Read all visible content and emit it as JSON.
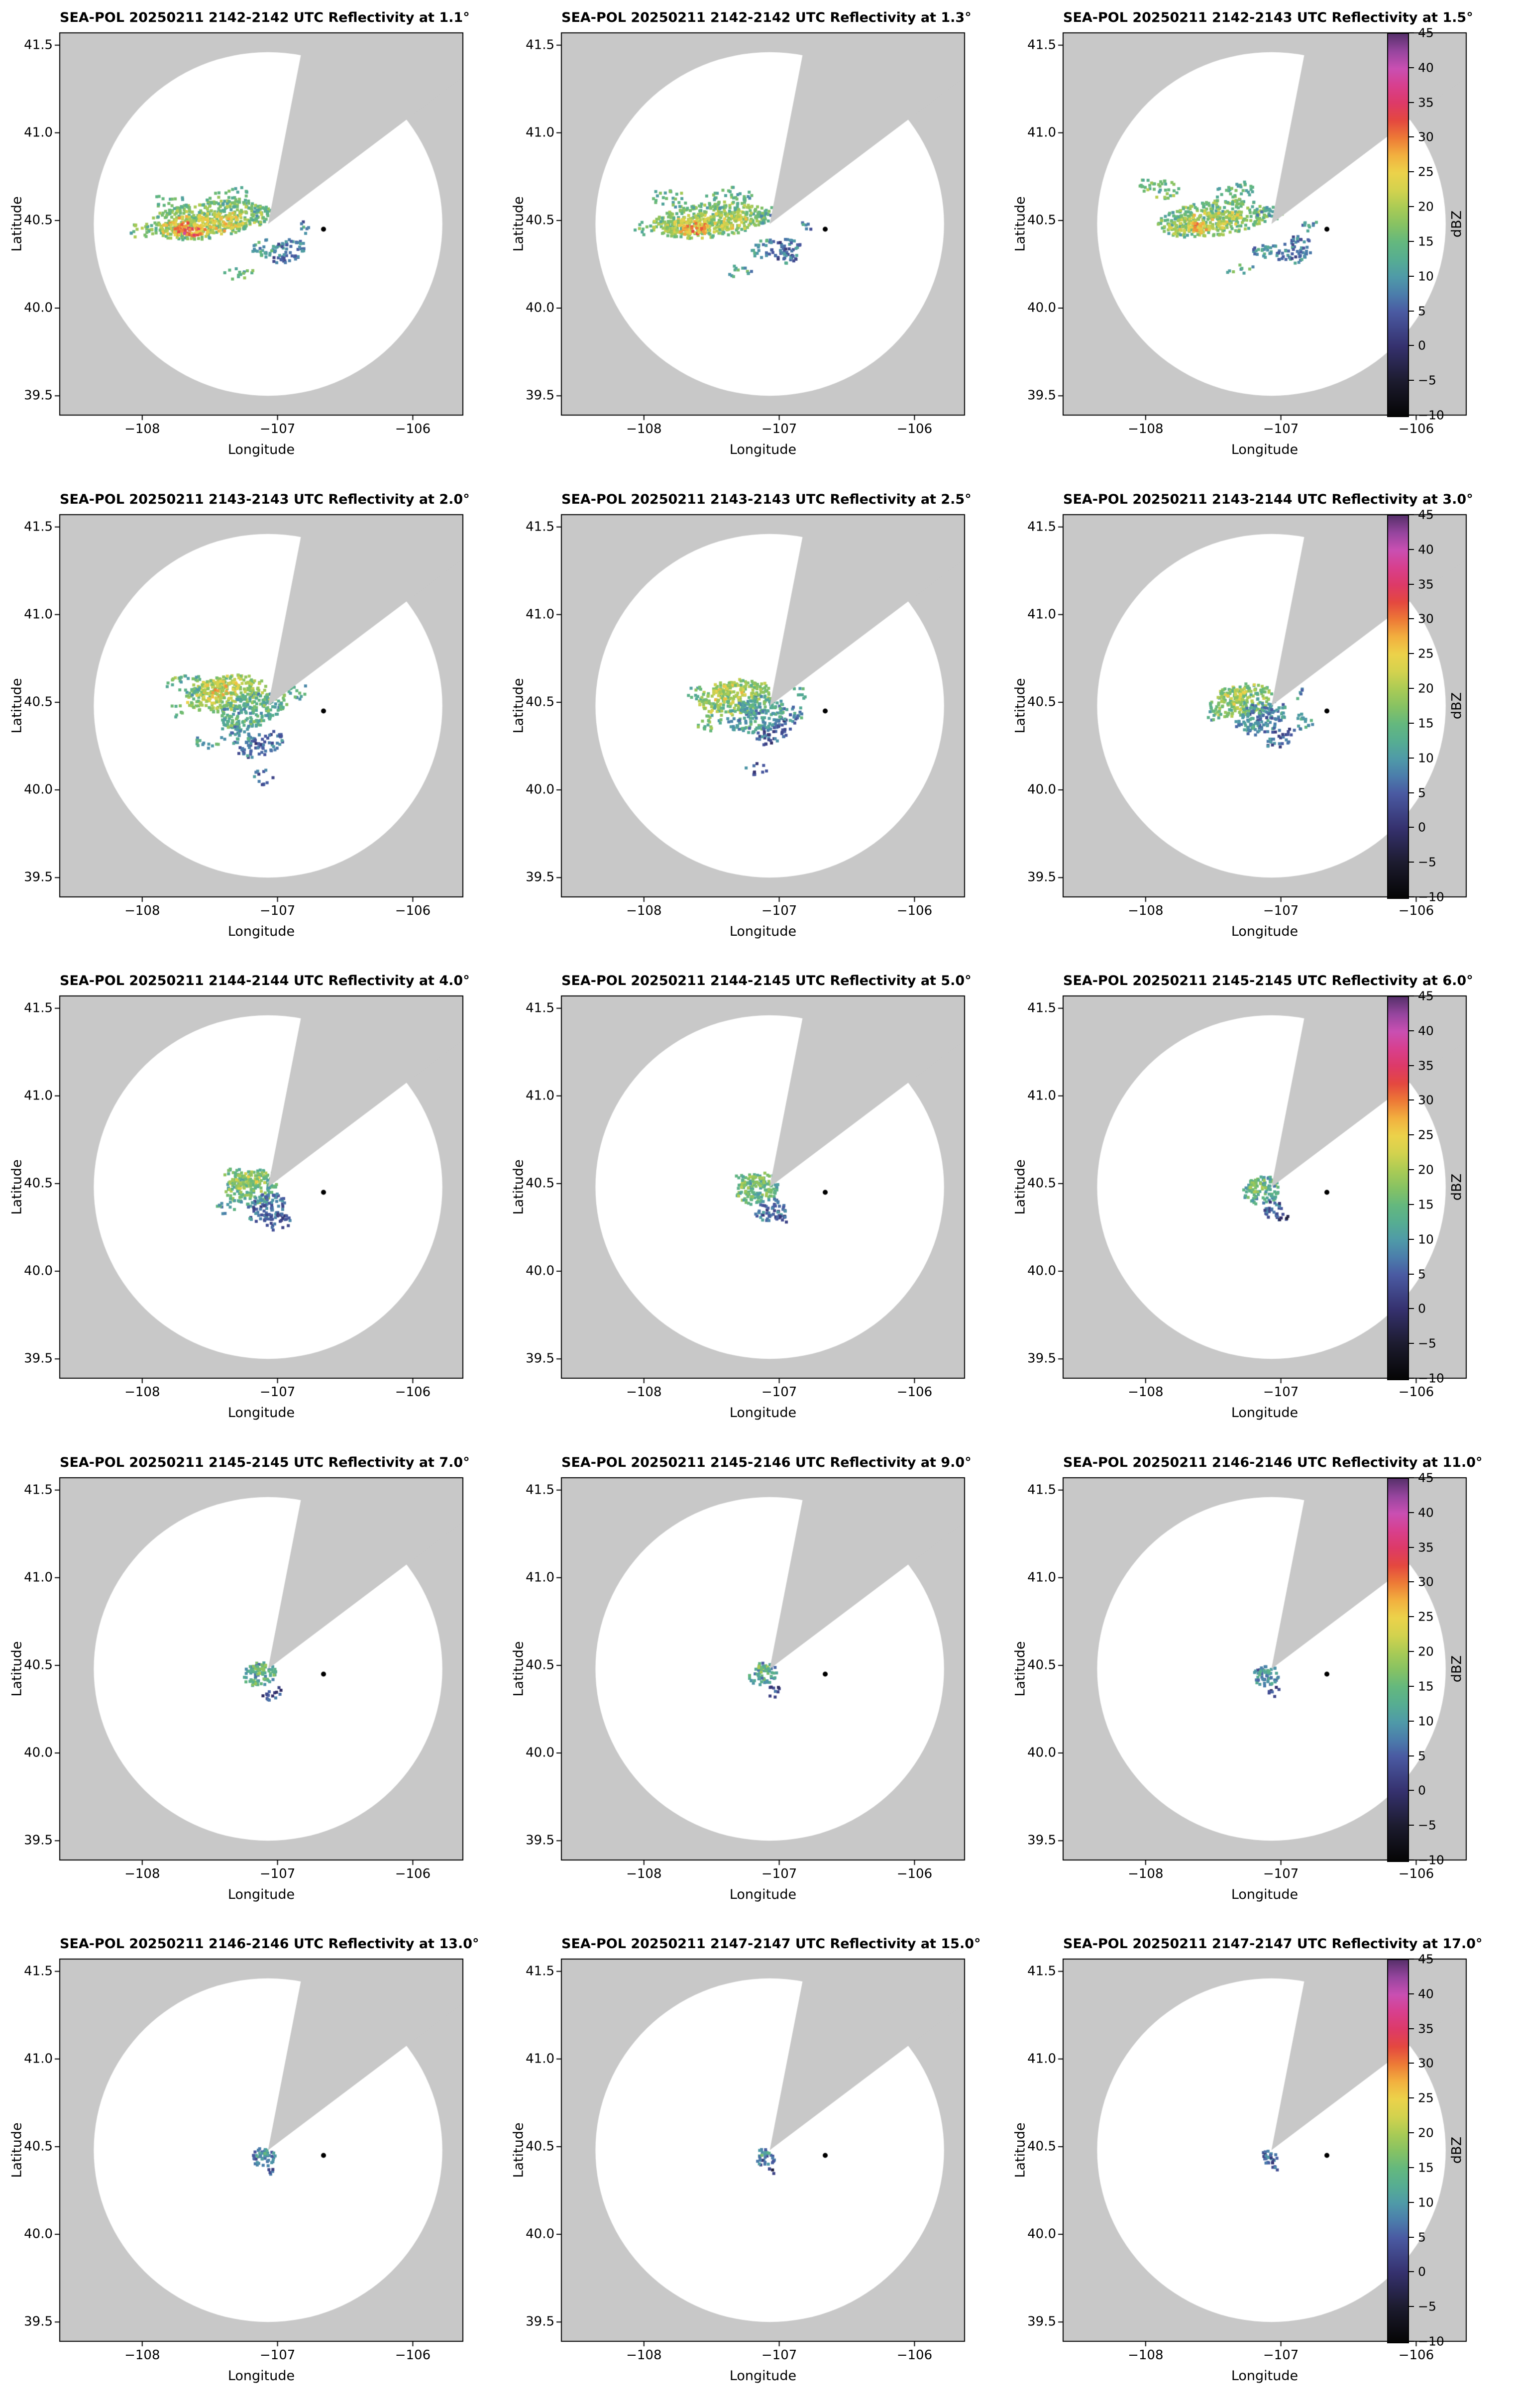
{
  "chart_data": {
    "type": "heatmap",
    "subtype": "radar_ppi_multipanel",
    "radar_name": "SEA-POL",
    "date": "20250211",
    "variable": "Reflectivity",
    "units": "dBZ",
    "grid": {
      "rows": 5,
      "cols": 3
    },
    "axes": {
      "xlabel": "Longitude",
      "ylabel": "Latitude",
      "xlim": [
        -108.61,
        -105.63
      ],
      "ylim": [
        39.39,
        41.57
      ],
      "x_ticks": [
        -108,
        -107,
        -106
      ],
      "x_tick_labels": [
        "−108",
        "−107",
        "−106"
      ],
      "y_ticks": [
        39.5,
        40.0,
        40.5,
        41.0,
        41.5
      ],
      "y_tick_labels": [
        "39.5",
        "40.0",
        "40.5",
        "41.0",
        "41.5"
      ]
    },
    "map": {
      "radar_center": {
        "lon": -107.07,
        "lat": 40.48
      },
      "scan_circle_radius_deg_lat": 0.98,
      "blocked_sector_azimuth_deg": [
        11,
        53
      ],
      "site_marker": {
        "lon": -106.66,
        "lat": 40.45,
        "color": "#000000"
      },
      "inside_circle_color": "#ffffff",
      "outside_color": "#c8c8c8"
    },
    "colorbar": {
      "label": "dBZ",
      "min": -10,
      "max": 45,
      "ticks": [
        45,
        40,
        35,
        30,
        25,
        20,
        15,
        10,
        5,
        0,
        -5,
        -10
      ],
      "tick_labels": [
        "45",
        "40",
        "35",
        "30",
        "25",
        "20",
        "15",
        "10",
        "5",
        "0",
        "−5",
        "−10"
      ],
      "stops": [
        [
          -10,
          "#050505"
        ],
        [
          -5,
          "#1c1b2e"
        ],
        [
          0,
          "#35316e"
        ],
        [
          5,
          "#4a5aa2"
        ],
        [
          7.5,
          "#4b7dab"
        ],
        [
          10,
          "#4f9aa8"
        ],
        [
          12.5,
          "#56ad92"
        ],
        [
          15,
          "#64b87e"
        ],
        [
          17.5,
          "#86c263"
        ],
        [
          20,
          "#aacb55"
        ],
        [
          22.5,
          "#d3d24e"
        ],
        [
          25,
          "#ecd24a"
        ],
        [
          27.5,
          "#f2b03f"
        ],
        [
          30,
          "#ed7a36"
        ],
        [
          32.5,
          "#e4483f"
        ],
        [
          35,
          "#dd3a67"
        ],
        [
          37.5,
          "#d83f8d"
        ],
        [
          40,
          "#c94fb2"
        ],
        [
          42.5,
          "#96459e"
        ],
        [
          45,
          "#57306b"
        ]
      ]
    },
    "echo_blob_fields": [
      "lon",
      "lat",
      "rx_deg",
      "ry_deg",
      "rot_deg",
      "dbz",
      "density"
    ],
    "panels": [
      {
        "title": "SEA-POL 20250211 2142-2142 UTC Reflectivity at 1.1°",
        "elevation_deg": 1.1,
        "time_utc": "2142-2142",
        "echo_blobs": [
          [
            -107.52,
            40.5,
            0.46,
            0.105,
            -6,
            17,
            0.8
          ],
          [
            -107.55,
            40.48,
            0.33,
            0.06,
            -6,
            23,
            0.9
          ],
          [
            -107.63,
            40.45,
            0.14,
            0.04,
            -4,
            29,
            0.95
          ],
          [
            -107.67,
            40.44,
            0.05,
            0.018,
            0,
            33,
            0.9
          ],
          [
            -107.36,
            40.62,
            0.2,
            0.06,
            -14,
            15,
            0.35
          ],
          [
            -107.78,
            40.6,
            0.14,
            0.05,
            8,
            15,
            0.3
          ],
          [
            -107.1,
            40.53,
            0.1,
            0.045,
            -12,
            14,
            0.55
          ],
          [
            -106.92,
            40.32,
            0.13,
            0.07,
            -25,
            7,
            0.65
          ],
          [
            -107.1,
            40.34,
            0.1,
            0.05,
            -15,
            11,
            0.5
          ],
          [
            -107.28,
            40.2,
            0.13,
            0.035,
            -8,
            13,
            0.3
          ],
          [
            -106.8,
            40.46,
            0.05,
            0.035,
            0,
            9,
            0.4
          ],
          [
            -108.02,
            40.44,
            0.08,
            0.04,
            0,
            16,
            0.4
          ]
        ]
      },
      {
        "title": "SEA-POL 20250211 2142-2142 UTC Reflectivity at 1.3°",
        "elevation_deg": 1.3,
        "time_utc": "2142-2142",
        "echo_blobs": [
          [
            -107.52,
            40.5,
            0.44,
            0.1,
            -6,
            17,
            0.8
          ],
          [
            -107.55,
            40.48,
            0.31,
            0.055,
            -6,
            22,
            0.9
          ],
          [
            -107.62,
            40.45,
            0.12,
            0.035,
            -4,
            28,
            0.95
          ],
          [
            -107.38,
            40.63,
            0.2,
            0.06,
            -14,
            15,
            0.35
          ],
          [
            -107.82,
            40.63,
            0.15,
            0.055,
            10,
            14,
            0.3
          ],
          [
            -107.1,
            40.53,
            0.1,
            0.045,
            -12,
            13,
            0.5
          ],
          [
            -106.93,
            40.33,
            0.13,
            0.07,
            -25,
            7,
            0.6
          ],
          [
            -107.12,
            40.34,
            0.1,
            0.05,
            -15,
            10,
            0.5
          ],
          [
            -107.3,
            40.21,
            0.12,
            0.035,
            -8,
            13,
            0.3
          ],
          [
            -106.81,
            40.46,
            0.05,
            0.035,
            0,
            8,
            0.35
          ],
          [
            -108.0,
            40.45,
            0.07,
            0.04,
            0,
            15,
            0.35
          ]
        ]
      },
      {
        "title": "SEA-POL 20250211 2142-2143 UTC Reflectivity at 1.5°",
        "elevation_deg": 1.5,
        "time_utc": "2142-2143",
        "echo_blobs": [
          [
            -107.5,
            40.51,
            0.42,
            0.1,
            -7,
            16,
            0.8
          ],
          [
            -107.55,
            40.49,
            0.28,
            0.055,
            -7,
            21,
            0.85
          ],
          [
            -107.6,
            40.46,
            0.09,
            0.03,
            -4,
            27,
            0.9
          ],
          [
            -107.9,
            40.68,
            0.16,
            0.06,
            12,
            15,
            0.4
          ],
          [
            -107.35,
            40.66,
            0.18,
            0.055,
            -14,
            14,
            0.35
          ],
          [
            -107.08,
            40.54,
            0.1,
            0.045,
            -12,
            13,
            0.5
          ],
          [
            -106.9,
            40.33,
            0.14,
            0.075,
            -25,
            7,
            0.6
          ],
          [
            -107.12,
            40.33,
            0.1,
            0.05,
            -15,
            10,
            0.5
          ],
          [
            -106.78,
            40.47,
            0.06,
            0.04,
            0,
            9,
            0.4
          ],
          [
            -107.3,
            40.22,
            0.1,
            0.03,
            -8,
            12,
            0.3
          ]
        ]
      },
      {
        "title": "SEA-POL 20250211 2143-2143 UTC Reflectivity at 2.0°",
        "elevation_deg": 2.0,
        "time_utc": "2143-2143",
        "echo_blobs": [
          [
            -107.38,
            40.55,
            0.3,
            0.1,
            -10,
            19,
            0.8
          ],
          [
            -107.43,
            40.57,
            0.15,
            0.05,
            -10,
            23,
            0.85
          ],
          [
            -107.2,
            40.45,
            0.24,
            0.1,
            -15,
            13,
            0.8
          ],
          [
            -107.02,
            40.5,
            0.1,
            0.06,
            0,
            15,
            0.6
          ],
          [
            -107.12,
            40.26,
            0.18,
            0.065,
            -20,
            6,
            0.6
          ],
          [
            -107.32,
            40.31,
            0.12,
            0.05,
            10,
            11,
            0.5
          ],
          [
            -107.68,
            40.6,
            0.14,
            0.065,
            0,
            15,
            0.4
          ],
          [
            -106.84,
            40.56,
            0.08,
            0.05,
            0,
            13,
            0.35
          ],
          [
            -107.1,
            40.07,
            0.09,
            0.045,
            0,
            5,
            0.3
          ],
          [
            -107.52,
            40.26,
            0.11,
            0.04,
            20,
            13,
            0.3
          ],
          [
            -107.75,
            40.45,
            0.07,
            0.035,
            0,
            14,
            0.3
          ]
        ]
      },
      {
        "title": "SEA-POL 20250211 2143-2143 UTC Reflectivity at 2.5°",
        "elevation_deg": 2.5,
        "time_utc": "2143-2143",
        "echo_blobs": [
          [
            -107.33,
            40.53,
            0.27,
            0.1,
            -10,
            18,
            0.8
          ],
          [
            -107.38,
            40.55,
            0.12,
            0.05,
            -10,
            22,
            0.85
          ],
          [
            -107.17,
            40.43,
            0.22,
            0.1,
            -15,
            11,
            0.8
          ],
          [
            -107.03,
            40.33,
            0.15,
            0.06,
            -25,
            6,
            0.6
          ],
          [
            -106.89,
            40.43,
            0.08,
            0.05,
            0,
            9,
            0.5
          ],
          [
            -107.52,
            40.38,
            0.1,
            0.05,
            0,
            14,
            0.4
          ],
          [
            -106.84,
            40.56,
            0.06,
            0.04,
            0,
            12,
            0.35
          ],
          [
            -107.17,
            40.12,
            0.08,
            0.04,
            0,
            5,
            0.3
          ],
          [
            -107.6,
            40.55,
            0.08,
            0.04,
            0,
            14,
            0.3
          ]
        ]
      },
      {
        "title": "SEA-POL 20250211 2143-2144 UTC Reflectivity at 3.0°",
        "elevation_deg": 3.0,
        "time_utc": "2143-2144",
        "echo_blobs": [
          [
            -107.3,
            40.51,
            0.24,
            0.09,
            -12,
            17,
            0.8
          ],
          [
            -107.34,
            40.53,
            0.1,
            0.04,
            -12,
            21,
            0.85
          ],
          [
            -107.14,
            40.41,
            0.2,
            0.09,
            -18,
            9,
            0.8
          ],
          [
            -107.0,
            40.3,
            0.12,
            0.05,
            -25,
            5,
            0.5
          ],
          [
            -106.82,
            40.39,
            0.07,
            0.05,
            0,
            13,
            0.55
          ],
          [
            -107.5,
            40.43,
            0.08,
            0.04,
            0,
            13,
            0.35
          ],
          [
            -106.86,
            40.55,
            0.05,
            0.035,
            0,
            11,
            0.3
          ]
        ]
      },
      {
        "title": "SEA-POL 20250211 2144-2144 UTC Reflectivity at 4.0°",
        "elevation_deg": 4.0,
        "time_utc": "2144-2144",
        "echo_blobs": [
          [
            -107.19,
            40.48,
            0.2,
            0.1,
            -15,
            15,
            0.85
          ],
          [
            -107.24,
            40.52,
            0.12,
            0.045,
            -15,
            20,
            0.9
          ],
          [
            -107.08,
            40.36,
            0.15,
            0.08,
            -20,
            7,
            0.8
          ],
          [
            -106.99,
            40.28,
            0.09,
            0.05,
            -20,
            4,
            0.55
          ],
          [
            -107.38,
            40.36,
            0.07,
            0.04,
            0,
            10,
            0.4
          ],
          [
            -107.33,
            40.56,
            0.07,
            0.035,
            0,
            16,
            0.45
          ]
        ]
      },
      {
        "title": "SEA-POL 20250211 2144-2145 UTC Reflectivity at 5.0°",
        "elevation_deg": 5.0,
        "time_utc": "2144-2145",
        "echo_blobs": [
          [
            -107.16,
            40.47,
            0.16,
            0.09,
            -15,
            14,
            0.85
          ],
          [
            -107.2,
            40.5,
            0.1,
            0.04,
            -15,
            19,
            0.9
          ],
          [
            -107.06,
            40.35,
            0.12,
            0.06,
            -20,
            6,
            0.7
          ],
          [
            -106.99,
            40.3,
            0.06,
            0.035,
            0,
            3,
            0.5
          ],
          [
            -107.3,
            40.52,
            0.05,
            0.03,
            0,
            15,
            0.4
          ]
        ]
      },
      {
        "title": "SEA-POL 20250211 2145-2145 UTC Reflectivity at 6.0°",
        "elevation_deg": 6.0,
        "time_utc": "2145-2145",
        "echo_blobs": [
          [
            -107.14,
            40.46,
            0.14,
            0.08,
            -15,
            13,
            0.85
          ],
          [
            -107.17,
            40.49,
            0.08,
            0.035,
            -15,
            18,
            0.9
          ],
          [
            -107.05,
            40.35,
            0.09,
            0.05,
            -20,
            5,
            0.6
          ],
          [
            -106.99,
            40.31,
            0.05,
            0.03,
            0,
            2,
            0.45
          ]
        ]
      },
      {
        "title": "SEA-POL 20250211 2145-2145 UTC Reflectivity at 7.0°",
        "elevation_deg": 7.0,
        "time_utc": "2145-2145",
        "echo_blobs": [
          [
            -107.13,
            40.45,
            0.12,
            0.075,
            -15,
            12,
            0.85
          ],
          [
            -107.14,
            40.48,
            0.065,
            0.03,
            -15,
            17,
            0.9
          ],
          [
            -107.04,
            40.34,
            0.07,
            0.04,
            -20,
            4,
            0.55
          ]
        ]
      },
      {
        "title": "SEA-POL 20250211 2145-2146 UTC Reflectivity at 9.0°",
        "elevation_deg": 9.0,
        "time_utc": "2145-2146",
        "echo_blobs": [
          [
            -107.12,
            40.45,
            0.105,
            0.065,
            -15,
            11,
            0.85
          ],
          [
            -107.13,
            40.475,
            0.055,
            0.026,
            -15,
            16,
            0.9
          ],
          [
            -107.04,
            40.35,
            0.055,
            0.032,
            0,
            4,
            0.5
          ]
        ]
      },
      {
        "title": "SEA-POL 20250211 2146-2146 UTC Reflectivity at 11.0°",
        "elevation_deg": 11.0,
        "time_utc": "2146-2146",
        "echo_blobs": [
          [
            -107.11,
            40.44,
            0.095,
            0.06,
            -15,
            9,
            0.85
          ],
          [
            -107.12,
            40.465,
            0.05,
            0.022,
            -15,
            14,
            0.9
          ],
          [
            -107.05,
            40.35,
            0.05,
            0.03,
            0,
            3,
            0.5
          ]
        ]
      },
      {
        "title": "SEA-POL 20250211 2146-2146 UTC Reflectivity at 13.0°",
        "elevation_deg": 13.0,
        "time_utc": "2146-2146",
        "echo_blobs": [
          [
            -107.1,
            40.44,
            0.085,
            0.055,
            -12,
            8,
            0.85
          ],
          [
            -107.11,
            40.46,
            0.04,
            0.02,
            0,
            12,
            0.9
          ],
          [
            -107.05,
            40.36,
            0.04,
            0.025,
            0,
            3,
            0.5
          ]
        ]
      },
      {
        "title": "SEA-POL 20250211 2147-2147 UTC Reflectivity at 15.0°",
        "elevation_deg": 15.0,
        "time_utc": "2147-2147",
        "echo_blobs": [
          [
            -107.1,
            40.44,
            0.075,
            0.05,
            -10,
            7,
            0.8
          ],
          [
            -107.1,
            40.455,
            0.035,
            0.018,
            0,
            11,
            0.85
          ],
          [
            -107.05,
            40.36,
            0.035,
            0.02,
            0,
            2,
            0.45
          ]
        ]
      },
      {
        "title": "SEA-POL 20250211 2147-2147 UTC Reflectivity at 17.0°",
        "elevation_deg": 17.0,
        "time_utc": "2147-2147",
        "echo_blobs": [
          [
            -107.09,
            40.44,
            0.065,
            0.042,
            -10,
            5,
            0.75
          ],
          [
            -107.09,
            40.455,
            0.03,
            0.015,
            0,
            9,
            0.8
          ],
          [
            -107.05,
            40.37,
            0.03,
            0.017,
            0,
            2,
            0.4
          ]
        ]
      }
    ]
  }
}
